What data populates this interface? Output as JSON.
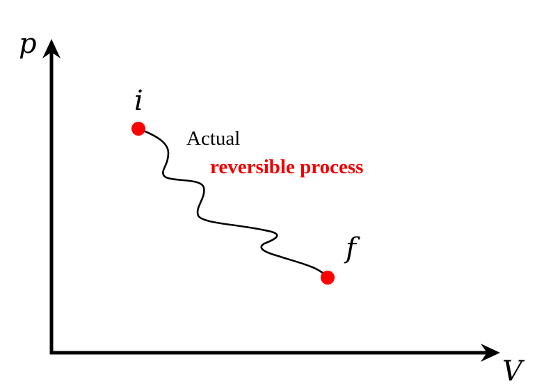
{
  "axes": {
    "y_label": "p",
    "x_label": "V"
  },
  "states": {
    "initial": "i",
    "final": "f"
  },
  "labels": {
    "actual": "Actual",
    "reversible": "reversible process"
  },
  "colors": {
    "axis": "#000000",
    "path": "#000000",
    "state_point": "#ff0000",
    "reversible_text": "#ee0000"
  }
}
